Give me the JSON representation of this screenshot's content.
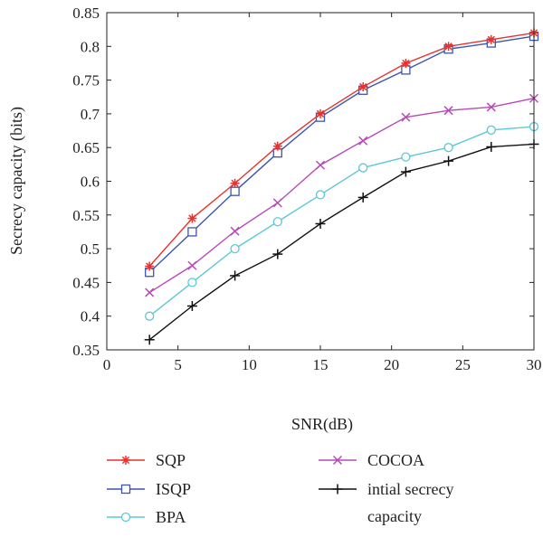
{
  "chart_data": {
    "type": "line",
    "title": "",
    "xlabel": "SNR(dB)",
    "ylabel": "Secrecy capacity (bits)",
    "xlim": [
      0,
      30
    ],
    "ylim": [
      0.35,
      0.85
    ],
    "xticks": [
      "0",
      "5",
      "10",
      "15",
      "20",
      "25",
      "30"
    ],
    "yticks": [
      "0.35",
      "0.4",
      "0.45",
      "0.5",
      "0.55",
      "0.6",
      "0.65",
      "0.7",
      "0.75",
      "0.8",
      "0.85"
    ],
    "grid": false,
    "legend_position": "bottom",
    "x": [
      3,
      6,
      9,
      12,
      15,
      18,
      21,
      24,
      27,
      30
    ],
    "series": [
      {
        "name": "SQP",
        "color": "#e8322e",
        "marker": "star",
        "values": [
          0.474,
          0.545,
          0.597,
          0.652,
          0.7,
          0.74,
          0.775,
          0.8,
          0.81,
          0.82
        ]
      },
      {
        "name": "ISQP",
        "color": "#3b55b0",
        "marker": "square",
        "values": [
          0.465,
          0.525,
          0.585,
          0.642,
          0.695,
          0.735,
          0.765,
          0.796,
          0.805,
          0.815
        ]
      },
      {
        "name": "BPA",
        "color": "#5cc8d8",
        "marker": "circle",
        "values": [
          0.4,
          0.45,
          0.5,
          0.54,
          0.58,
          0.62,
          0.636,
          0.65,
          0.676,
          0.681
        ]
      },
      {
        "name": "COCOA",
        "color": "#b84ab8",
        "marker": "x",
        "values": [
          0.435,
          0.475,
          0.526,
          0.568,
          0.624,
          0.66,
          0.695,
          0.705,
          0.71,
          0.723
        ]
      },
      {
        "name": "intial secrecy capacity",
        "color": "#111111",
        "marker": "plus",
        "values": [
          0.365,
          0.415,
          0.46,
          0.492,
          0.537,
          0.576,
          0.614,
          0.63,
          0.651,
          0.655
        ]
      }
    ]
  }
}
